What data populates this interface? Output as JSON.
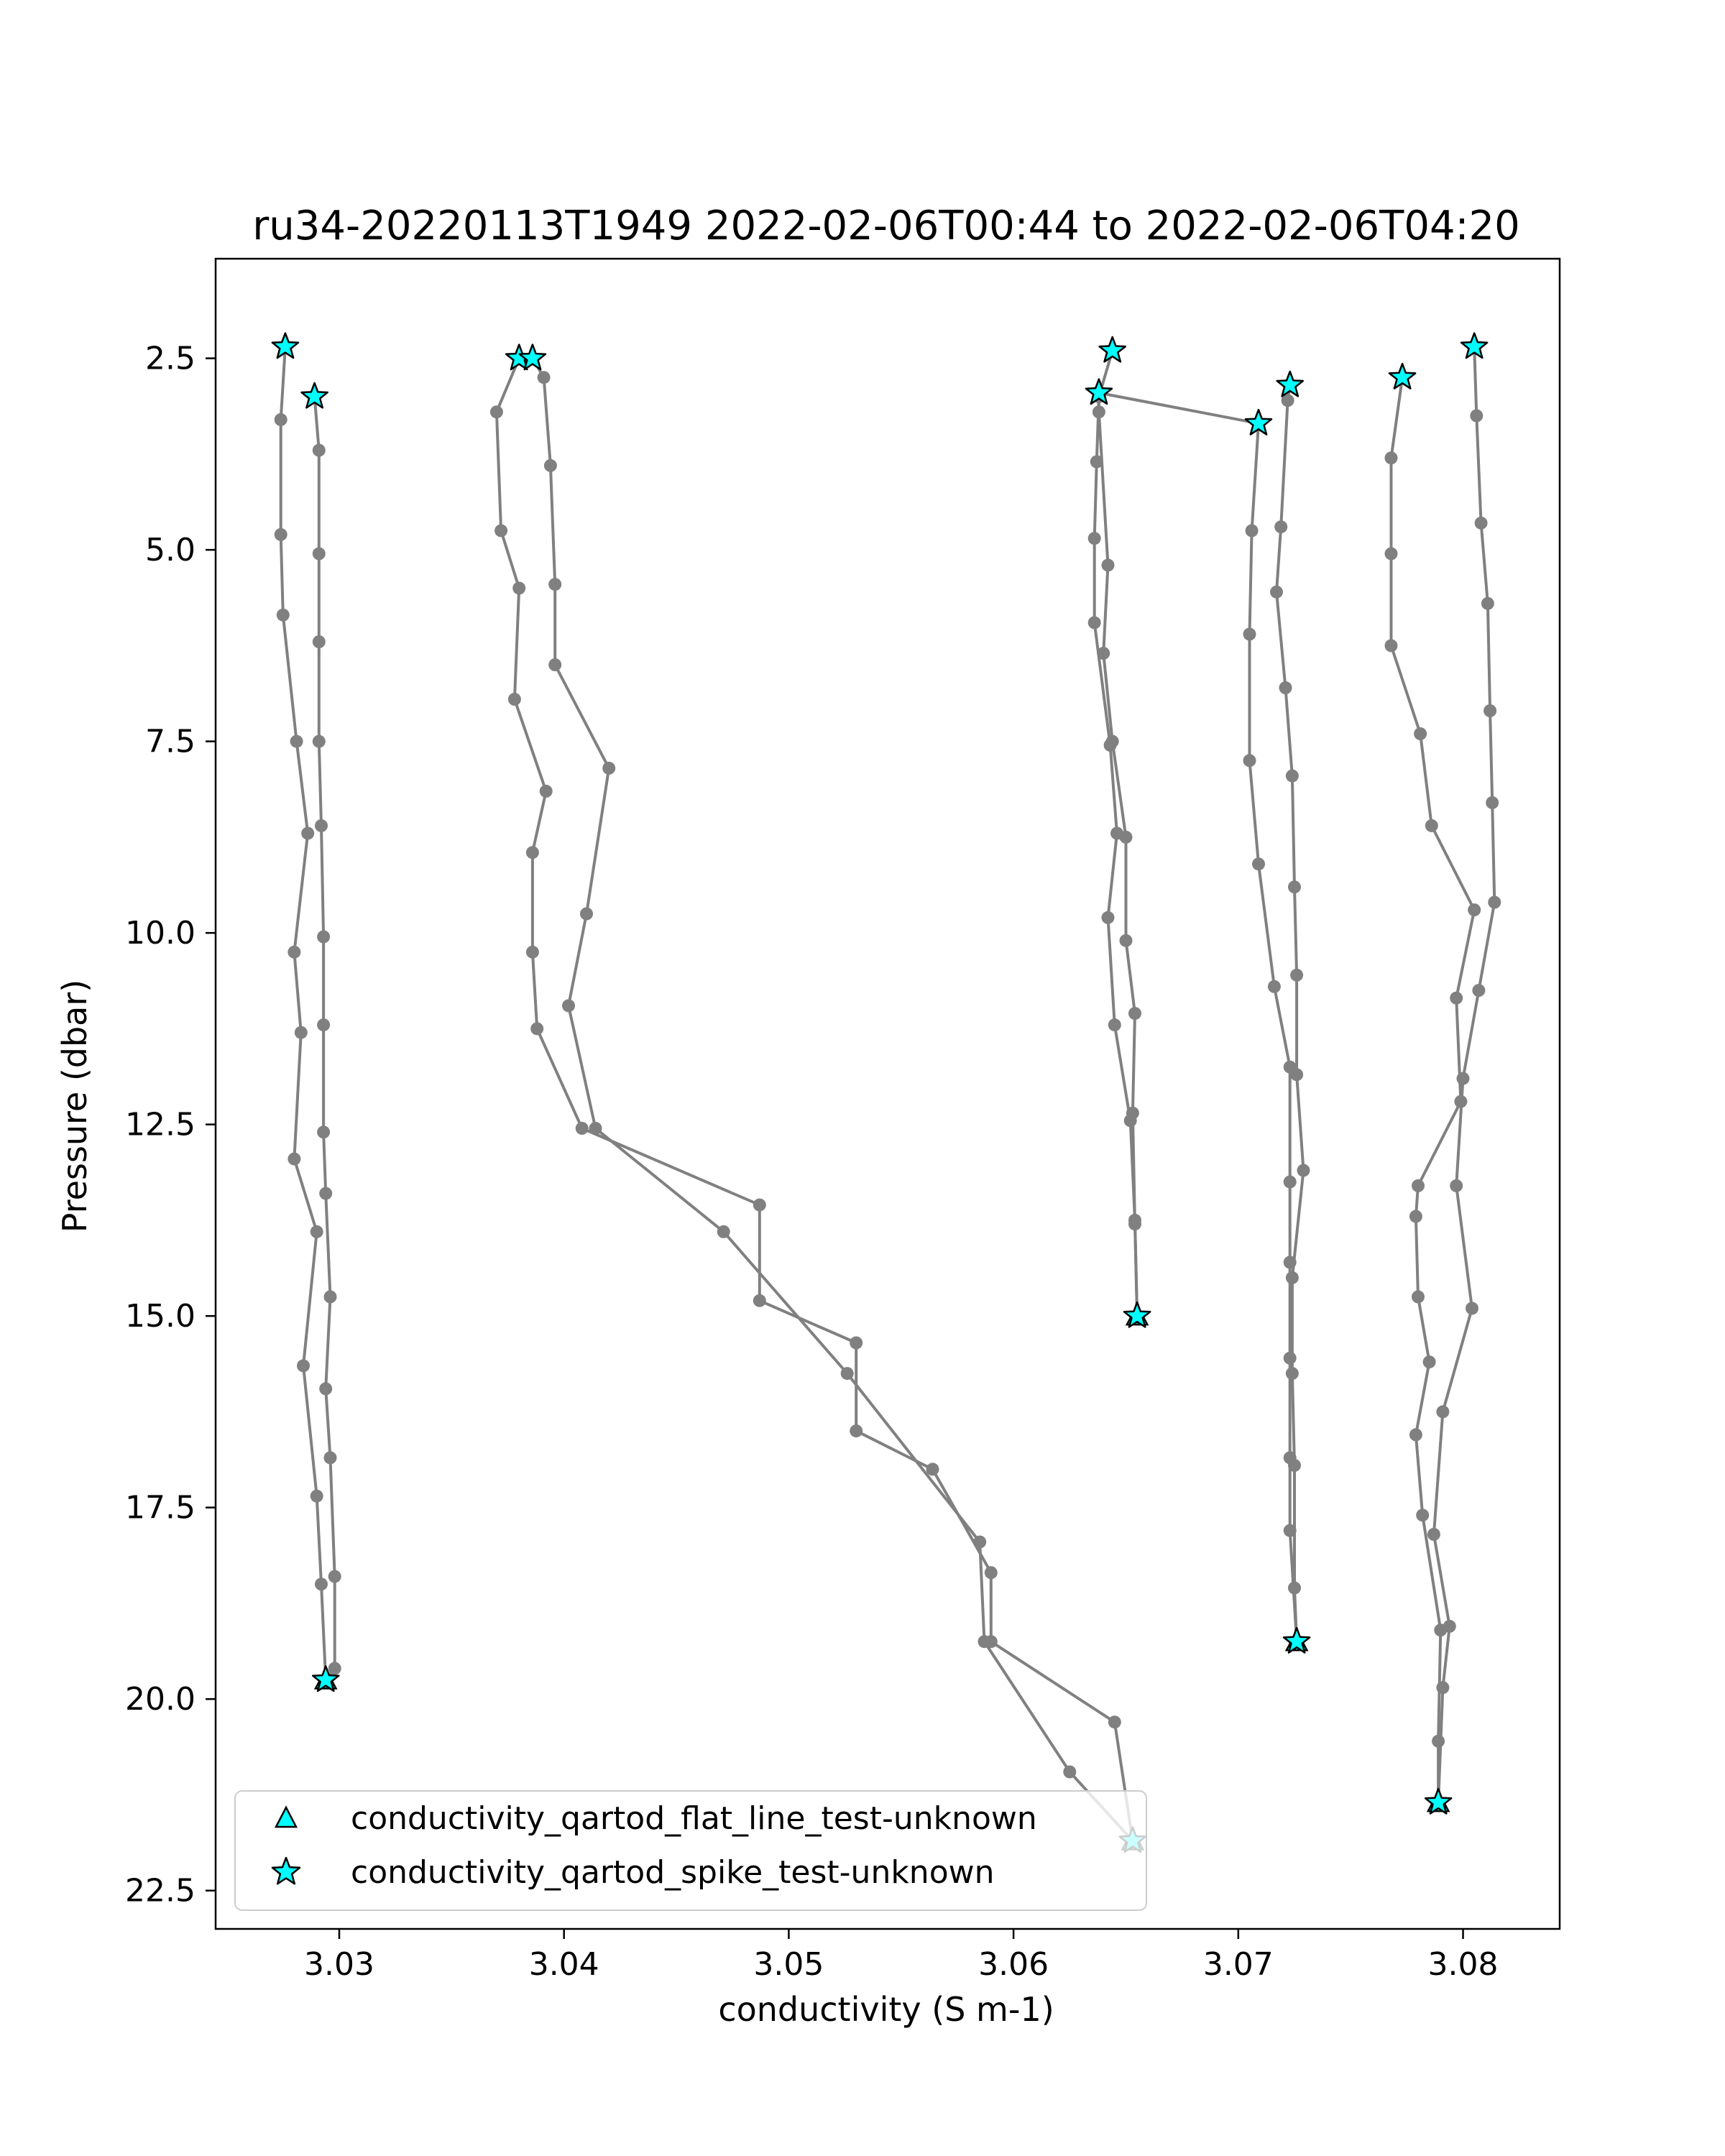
{
  "chart_data": {
    "type": "scatter",
    "title": "ru34-20220113T1949 2022-02-06T00:44 to 2022-02-06T04:20",
    "xlabel": "conductivity (S m-1)",
    "ylabel": "Pressure (dbar)",
    "xlim": [
      3.0245,
      3.0843
    ],
    "ylim": [
      23.0,
      1.2
    ],
    "y_inverted": true,
    "xticks": [
      3.03,
      3.04,
      3.05,
      3.06,
      3.07,
      3.08
    ],
    "xtick_labels": [
      "3.03",
      "3.04",
      "3.05",
      "3.06",
      "3.07",
      "3.08"
    ],
    "yticks": [
      2.5,
      5.0,
      7.5,
      10.0,
      12.5,
      15.0,
      17.5,
      20.0,
      22.5
    ],
    "ytick_labels": [
      "2.5",
      "5.0",
      "7.5",
      "10.0",
      "12.5",
      "15.0",
      "17.5",
      "20.0",
      "22.5"
    ],
    "grid": false,
    "legend_position": "lower-left",
    "colors": {
      "profile_line": "#808080",
      "profile_marker": "#808080",
      "flag_fill": "#00ffff",
      "flag_edge": "#000000"
    },
    "profiles": [
      {
        "points": [
          [
            3.0276,
            2.35
          ],
          [
            3.0274,
            3.3
          ],
          [
            3.0274,
            4.8
          ],
          [
            3.0275,
            5.85
          ],
          [
            3.0281,
            7.5
          ],
          [
            3.0286,
            8.7
          ],
          [
            3.028,
            10.25
          ],
          [
            3.0283,
            11.3
          ],
          [
            3.028,
            12.95
          ],
          [
            3.029,
            13.9
          ],
          [
            3.0284,
            15.65
          ],
          [
            3.029,
            17.35
          ],
          [
            3.0292,
            18.5
          ],
          [
            3.0294,
            19.75
          ]
        ]
      },
      {
        "points": [
          [
            3.0289,
            3.0
          ],
          [
            3.0291,
            3.7
          ],
          [
            3.0291,
            5.05
          ],
          [
            3.0291,
            6.2
          ],
          [
            3.0291,
            7.5
          ],
          [
            3.0292,
            8.6
          ],
          [
            3.0293,
            10.05
          ],
          [
            3.0293,
            11.2
          ],
          [
            3.0293,
            12.6
          ],
          [
            3.0294,
            13.4
          ],
          [
            3.0296,
            14.75
          ],
          [
            3.0294,
            15.95
          ],
          [
            3.0296,
            16.85
          ],
          [
            3.0298,
            18.4
          ],
          [
            3.0298,
            19.6
          ],
          [
            3.0294,
            19.75
          ]
        ]
      },
      {
        "points": [
          [
            3.038,
            2.5
          ],
          [
            3.037,
            3.2
          ],
          [
            3.0372,
            4.75
          ],
          [
            3.038,
            5.5
          ],
          [
            3.0378,
            6.95
          ],
          [
            3.0392,
            8.15
          ],
          [
            3.0386,
            8.95
          ],
          [
            3.0386,
            10.25
          ],
          [
            3.0388,
            11.25
          ],
          [
            3.0408,
            12.55
          ],
          [
            3.0487,
            13.55
          ],
          [
            3.0487,
            14.8
          ],
          [
            3.053,
            15.35
          ],
          [
            3.053,
            16.5
          ],
          [
            3.0564,
            17.0
          ],
          [
            3.059,
            18.35
          ],
          [
            3.059,
            19.25
          ],
          [
            3.0645,
            20.3
          ],
          [
            3.0653,
            21.85
          ]
        ]
      },
      {
        "points": [
          [
            3.0386,
            2.5
          ],
          [
            3.0391,
            2.75
          ],
          [
            3.0394,
            3.9
          ],
          [
            3.0396,
            5.45
          ],
          [
            3.0396,
            6.5
          ],
          [
            3.042,
            7.85
          ],
          [
            3.041,
            9.75
          ],
          [
            3.0402,
            10.95
          ],
          [
            3.0414,
            12.55
          ],
          [
            3.0471,
            13.9
          ],
          [
            3.0526,
            15.75
          ],
          [
            3.0585,
            17.95
          ],
          [
            3.0587,
            19.25
          ],
          [
            3.0625,
            20.95
          ],
          [
            3.0653,
            21.85
          ]
        ]
      },
      {
        "points": [
          [
            3.0644,
            2.4
          ],
          [
            3.0638,
            3.0
          ],
          [
            3.0637,
            3.85
          ],
          [
            3.0636,
            4.85
          ],
          [
            3.0636,
            5.95
          ],
          [
            3.0643,
            7.55
          ],
          [
            3.0646,
            8.7
          ],
          [
            3.0642,
            9.8
          ],
          [
            3.0645,
            11.2
          ],
          [
            3.0652,
            12.45
          ],
          [
            3.0654,
            13.75
          ],
          [
            3.0655,
            15.0
          ]
        ]
      },
      {
        "points": [
          [
            3.0638,
            2.95
          ],
          [
            3.0638,
            3.2
          ],
          [
            3.0642,
            5.2
          ],
          [
            3.064,
            6.35
          ],
          [
            3.0644,
            7.5
          ],
          [
            3.065,
            8.75
          ],
          [
            3.065,
            10.1
          ],
          [
            3.0654,
            11.05
          ],
          [
            3.0653,
            12.35
          ],
          [
            3.0654,
            13.8
          ],
          [
            3.0655,
            15.0
          ]
        ]
      },
      {
        "points": [
          [
            3.0638,
            2.95
          ],
          [
            3.0709,
            3.35
          ],
          [
            3.0706,
            4.75
          ],
          [
            3.0705,
            6.1
          ],
          [
            3.0705,
            7.75
          ],
          [
            3.0709,
            9.1
          ],
          [
            3.0716,
            10.7
          ],
          [
            3.0723,
            11.75
          ],
          [
            3.0723,
            13.25
          ],
          [
            3.0723,
            14.3
          ],
          [
            3.0723,
            15.55
          ],
          [
            3.0723,
            16.85
          ],
          [
            3.0723,
            17.8
          ],
          [
            3.0726,
            19.25
          ]
        ]
      },
      {
        "points": [
          [
            3.0723,
            2.85
          ],
          [
            3.0722,
            3.05
          ],
          [
            3.0719,
            4.7
          ],
          [
            3.0717,
            5.55
          ],
          [
            3.0721,
            6.8
          ],
          [
            3.0724,
            7.95
          ],
          [
            3.0725,
            9.4
          ],
          [
            3.0726,
            10.55
          ],
          [
            3.0726,
            11.85
          ],
          [
            3.0729,
            13.1
          ],
          [
            3.0724,
            14.5
          ],
          [
            3.0724,
            15.75
          ],
          [
            3.0725,
            16.95
          ],
          [
            3.0725,
            18.55
          ],
          [
            3.0726,
            19.25
          ]
        ]
      },
      {
        "points": [
          [
            3.0773,
            2.75
          ],
          [
            3.0768,
            3.8
          ],
          [
            3.0768,
            5.05
          ],
          [
            3.0768,
            6.25
          ],
          [
            3.0781,
            7.4
          ],
          [
            3.0786,
            8.6
          ],
          [
            3.0805,
            9.7
          ],
          [
            3.0797,
            10.85
          ],
          [
            3.0799,
            12.2
          ],
          [
            3.078,
            13.3
          ],
          [
            3.0779,
            13.7
          ],
          [
            3.078,
            14.75
          ],
          [
            3.0785,
            15.6
          ],
          [
            3.0779,
            16.55
          ],
          [
            3.0782,
            17.6
          ],
          [
            3.079,
            19.1
          ],
          [
            3.0789,
            20.55
          ],
          [
            3.0789,
            21.35
          ]
        ]
      },
      {
        "points": [
          [
            3.0805,
            2.35
          ],
          [
            3.0806,
            3.25
          ],
          [
            3.0808,
            4.65
          ],
          [
            3.0811,
            5.7
          ],
          [
            3.0812,
            7.1
          ],
          [
            3.0813,
            8.3
          ],
          [
            3.0814,
            9.6
          ],
          [
            3.0807,
            10.75
          ],
          [
            3.08,
            11.9
          ],
          [
            3.0797,
            13.3
          ],
          [
            3.0804,
            14.9
          ],
          [
            3.0791,
            16.25
          ],
          [
            3.0787,
            17.85
          ],
          [
            3.0794,
            19.05
          ],
          [
            3.0791,
            19.85
          ],
          [
            3.0789,
            21.35
          ]
        ]
      }
    ],
    "spike_flags": [
      [
        3.0276,
        2.35
      ],
      [
        3.0289,
        3.0
      ],
      [
        3.038,
        2.5
      ],
      [
        3.0386,
        2.5
      ],
      [
        3.0644,
        2.4
      ],
      [
        3.0638,
        2.95
      ],
      [
        3.0709,
        3.35
      ],
      [
        3.0723,
        2.85
      ],
      [
        3.0773,
        2.75
      ],
      [
        3.0805,
        2.35
      ],
      [
        3.0294,
        19.75
      ],
      [
        3.0655,
        15.0
      ],
      [
        3.0726,
        19.25
      ],
      [
        3.0789,
        21.35
      ],
      [
        3.0653,
        21.85
      ]
    ],
    "flat_line_flags": [
      [
        3.0294,
        19.75
      ],
      [
        3.0655,
        15.0
      ],
      [
        3.0726,
        19.25
      ],
      [
        3.0789,
        21.35
      ],
      [
        3.0653,
        21.85
      ]
    ],
    "legend": [
      {
        "label": "conductivity_qartod_flat_line_test-unknown",
        "marker": "triangle"
      },
      {
        "label": "conductivity_qartod_spike_test-unknown",
        "marker": "star"
      }
    ]
  }
}
